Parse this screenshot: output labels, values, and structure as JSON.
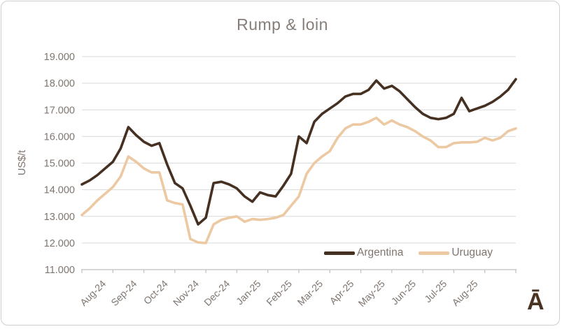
{
  "chart_data": {
    "type": "line",
    "title": "Rump & loin",
    "ylabel": "US$/t",
    "xlabel": "",
    "ylim": [
      11000,
      19000
    ],
    "ytick_step": 1000,
    "ytick_labels": [
      "11.000",
      "12.000",
      "13.000",
      "14.000",
      "15.000",
      "16.000",
      "17.000",
      "18.000",
      "19.000"
    ],
    "categories": [
      "Aug-24",
      "Sep-24",
      "Oct-24",
      "Nov-24",
      "Dec-24",
      "Jan-25",
      "Feb-25",
      "Mar-25",
      "Apr-25",
      "May-25",
      "Jun-25",
      "Jul-25",
      "Aug-25"
    ],
    "x_granularity": "weekly",
    "grid": true,
    "legend_position": "inside-bottom-right",
    "series": [
      {
        "name": "Argentina",
        "color": "#453021",
        "values": [
          14200,
          14350,
          14550,
          14800,
          15050,
          15550,
          16350,
          16050,
          15800,
          15650,
          15750,
          14950,
          14250,
          14050,
          13400,
          12700,
          12950,
          14250,
          14300,
          14200,
          14050,
          13750,
          13550,
          13900,
          13800,
          13750,
          14150,
          14600,
          16000,
          15750,
          16550,
          16850,
          17050,
          17250,
          17500,
          17600,
          17600,
          17750,
          18100,
          17800,
          17900,
          17700,
          17400,
          17100,
          16850,
          16700,
          16650,
          16700,
          16850,
          17450,
          16950,
          17050,
          17150,
          17300,
          17500,
          17750,
          18150
        ]
      },
      {
        "name": "Uruguay",
        "color": "#ecc9a2",
        "values": [
          13050,
          13300,
          13600,
          13850,
          14100,
          14500,
          15250,
          15050,
          14800,
          14650,
          14650,
          13600,
          13500,
          13450,
          12150,
          12020,
          12000,
          12700,
          12870,
          12950,
          13000,
          12800,
          12900,
          12870,
          12900,
          12950,
          13050,
          13400,
          13750,
          14600,
          15000,
          15250,
          15450,
          15950,
          16300,
          16450,
          16450,
          16550,
          16700,
          16450,
          16600,
          16450,
          16350,
          16200,
          16000,
          15850,
          15600,
          15600,
          15750,
          15780,
          15780,
          15800,
          15950,
          15850,
          15950,
          16200,
          16300
        ]
      }
    ]
  },
  "branding": {
    "logo_text": "Ā",
    "logo_color": "#4b3322"
  },
  "colors": {
    "grid": "#d9d9d9",
    "axis": "#bfbfbf",
    "tick_text": "#7f756f",
    "title_text": "#867d79",
    "frame_border": "#d0cece",
    "background": "#ffffff"
  }
}
